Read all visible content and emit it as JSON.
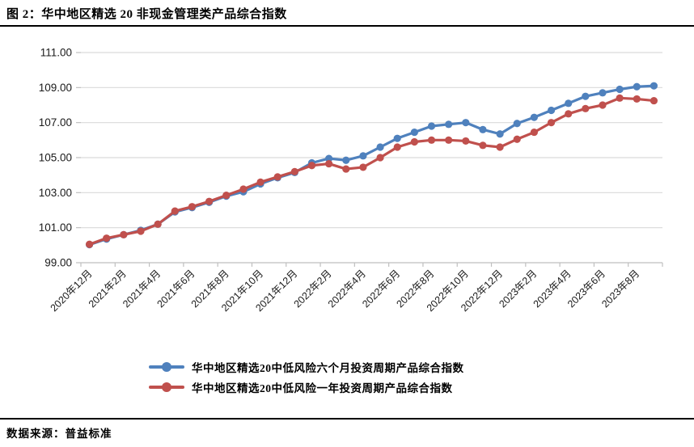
{
  "header": {
    "title": "图 2：华中地区精选 20 非现金管理类产品综合指数"
  },
  "footer": {
    "source_label": "数据来源：普益标准"
  },
  "colors": {
    "series_6m": "#4F81BD",
    "series_1y": "#C0504D",
    "gridline": "#D9D9D9",
    "axis": "#BFBFBF",
    "label_text": "#1a1a1a"
  },
  "chart_data": {
    "type": "line",
    "title": "华中地区精选 20 非现金管理类产品综合指数",
    "xlabel": "",
    "ylabel": "",
    "ylim": [
      99,
      111
    ],
    "ytick_step": 2,
    "grid": true,
    "legend_position": "bottom",
    "marker": "circle",
    "x": [
      "2020年12月",
      "2021年1月",
      "2021年2月",
      "2021年3月",
      "2021年4月",
      "2021年5月",
      "2021年6月",
      "2021年7月",
      "2021年8月",
      "2021年9月",
      "2021年10月",
      "2021年11月",
      "2021年12月",
      "2022年1月",
      "2022年2月",
      "2022年3月",
      "2022年4月",
      "2022年5月",
      "2022年6月",
      "2022年7月",
      "2022年8月",
      "2022年9月",
      "2022年10月",
      "2022年11月",
      "2022年12月",
      "2023年1月",
      "2023年2月",
      "2023年3月",
      "2023年4月",
      "2023年5月",
      "2023年6月",
      "2023年7月",
      "2023年8月",
      "2023年9月"
    ],
    "x_tick_labels": [
      "2020年12月",
      "2021年2月",
      "2021年4月",
      "2021年6月",
      "2021年8月",
      "2021年10月",
      "2021年12月",
      "2022年2月",
      "2022年4月",
      "2022年6月",
      "2022年8月",
      "2022年10月",
      "2022年12月",
      "2023年2月",
      "2023年4月",
      "2023年6月",
      "2023年8月"
    ],
    "x_label_interval": 2,
    "series": [
      {
        "name": "华中地区精选20中低风险六个月投资周期产品综合指数",
        "color": "#4F81BD",
        "values": [
          100.03,
          100.35,
          100.6,
          100.85,
          101.2,
          101.9,
          102.15,
          102.45,
          102.8,
          103.05,
          103.5,
          103.85,
          104.15,
          104.7,
          104.95,
          104.85,
          105.1,
          105.6,
          106.1,
          106.45,
          106.8,
          106.9,
          107.0,
          106.6,
          106.35,
          106.95,
          107.3,
          107.7,
          108.1,
          108.5,
          108.7,
          108.9,
          109.05,
          109.1
        ]
      },
      {
        "name": "华中地区精选20中低风险一年投资周期产品综合指数",
        "color": "#C0504D",
        "values": [
          100.05,
          100.4,
          100.6,
          100.8,
          101.2,
          101.95,
          102.2,
          102.5,
          102.85,
          103.2,
          103.6,
          103.9,
          104.2,
          104.55,
          104.65,
          104.35,
          104.45,
          105.0,
          105.6,
          105.9,
          106.0,
          106.0,
          105.95,
          105.7,
          105.6,
          106.05,
          106.45,
          107.0,
          107.5,
          107.8,
          108.0,
          108.4,
          108.35,
          108.25
        ]
      }
    ]
  }
}
